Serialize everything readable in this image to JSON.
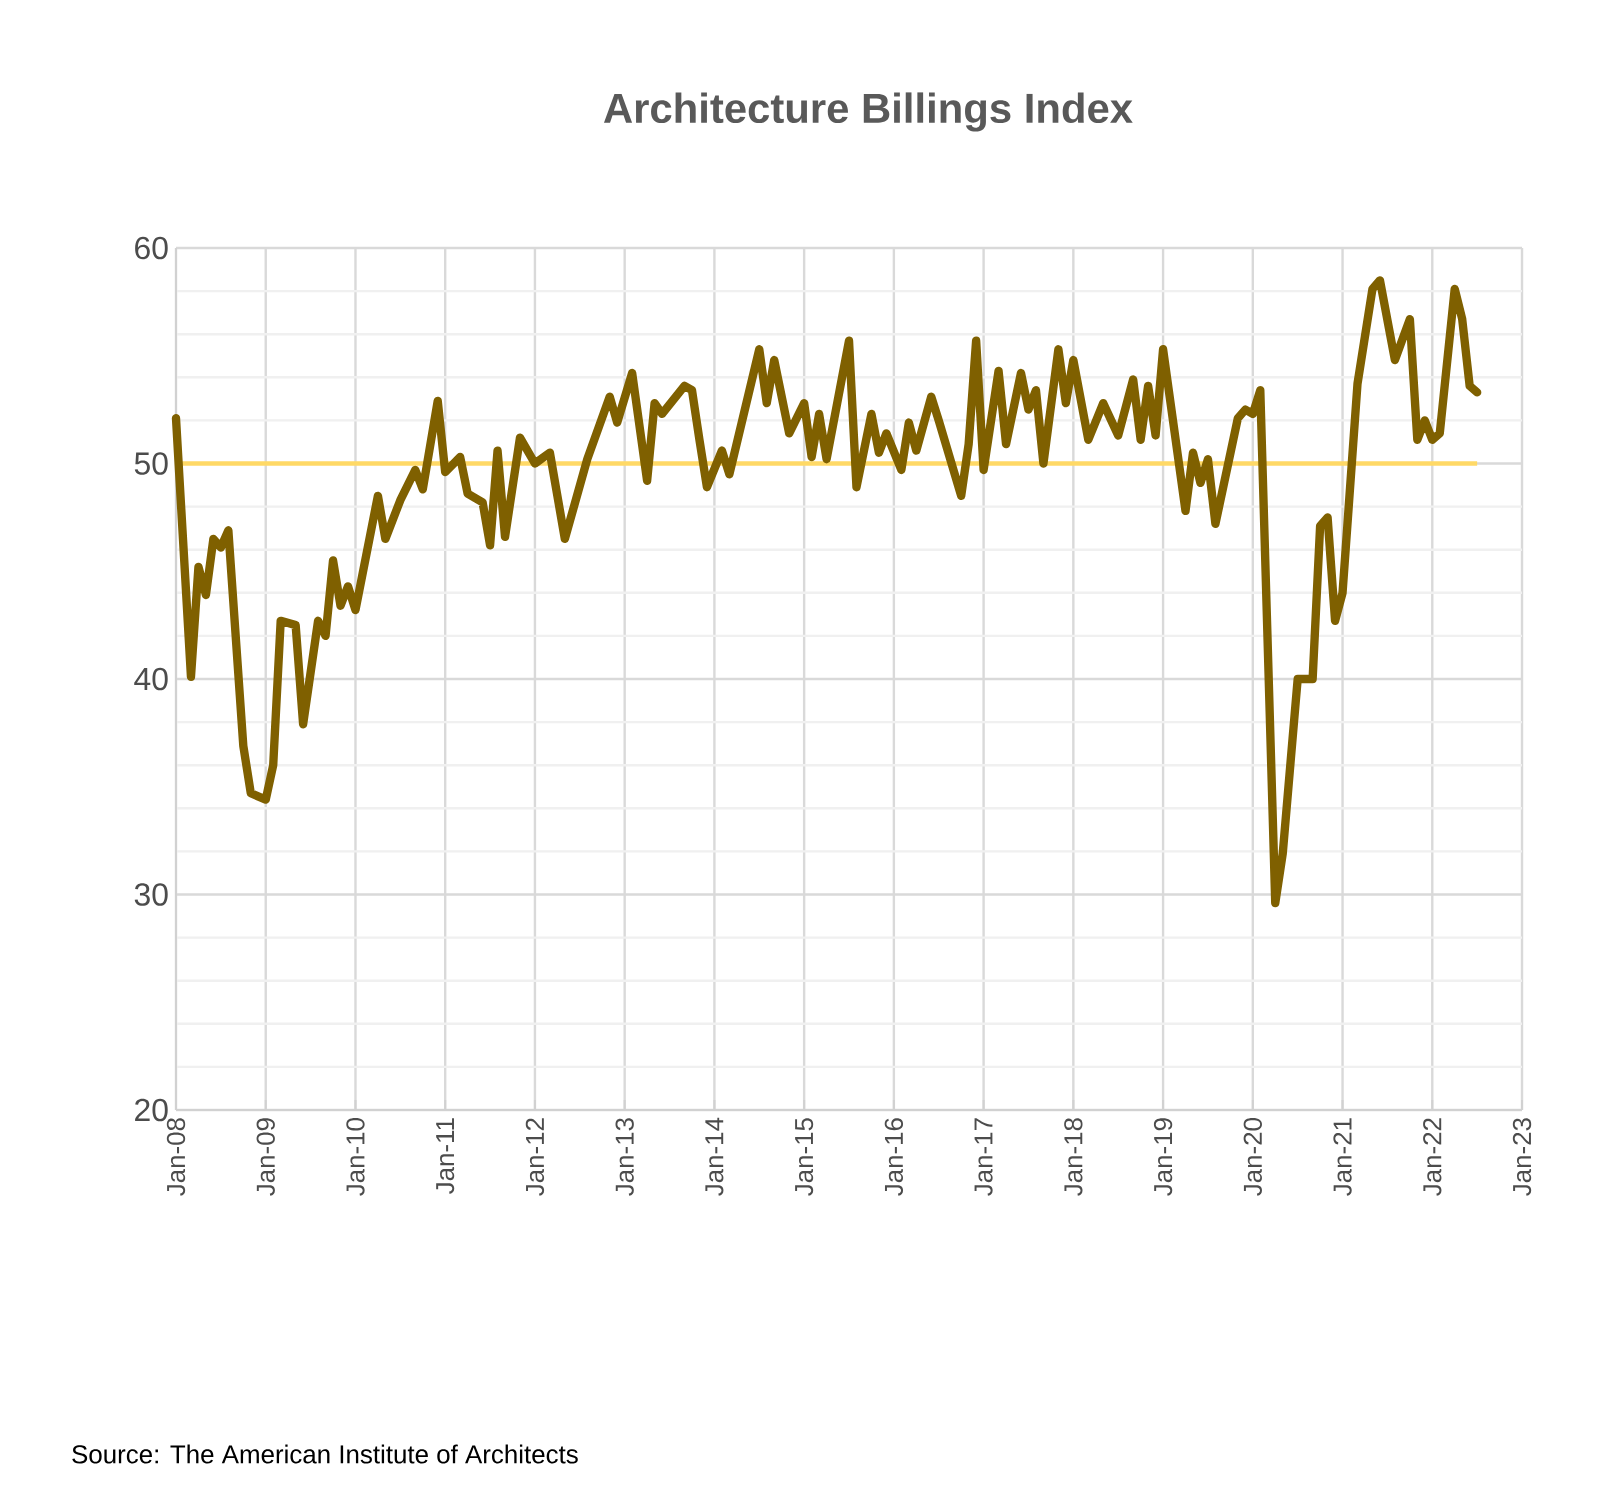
{
  "chart_data": {
    "type": "line",
    "title": "Architecture Billings Index",
    "annotations": [
      "Source: The American Institute of Architects"
    ],
    "x": [
      "2008-01",
      "2008-03",
      "2008-04",
      "2008-05",
      "2008-06",
      "2008-07",
      "2008-08",
      "2008-10",
      "2008-11",
      "2009-01",
      "2009-02",
      "2009-03",
      "2009-05",
      "2009-06",
      "2009-08",
      "2009-09",
      "2009-10",
      "2009-11",
      "2009-12",
      "2010-01",
      "2010-04",
      "2010-05",
      "2010-07",
      "2010-09",
      "2010-10",
      "2010-12",
      "2011-01",
      "2011-03",
      "2011-04",
      "2011-06",
      "2011-07",
      "2011-08",
      "2011-09",
      "2011-11",
      "2012-01",
      "2012-03",
      "2012-05",
      "2012-08",
      "2012-11",
      "2012-12",
      "2013-02",
      "2013-04",
      "2013-05",
      "2013-06",
      "2013-09",
      "2013-10",
      "2013-11",
      "2013-12",
      "2014-02",
      "2014-03",
      "2014-07",
      "2014-08",
      "2014-09",
      "2014-11",
      "2015-01",
      "2015-02",
      "2015-03",
      "2015-04",
      "2015-07",
      "2015-08",
      "2015-10",
      "2015-11",
      "2015-12",
      "2016-02",
      "2016-03",
      "2016-04",
      "2016-06",
      "2016-07",
      "2016-10",
      "2016-11",
      "2016-12",
      "2017-01",
      "2017-03",
      "2017-04",
      "2017-06",
      "2017-07",
      "2017-08",
      "2017-09",
      "2017-11",
      "2017-12",
      "2018-01",
      "2018-03",
      "2018-05",
      "2018-07",
      "2018-09",
      "2018-10",
      "2018-11",
      "2018-12",
      "2019-01",
      "2019-04",
      "2019-05",
      "2019-06",
      "2019-07",
      "2019-08",
      "2019-11",
      "2019-12",
      "2020-01",
      "2020-02",
      "2020-04",
      "2020-05",
      "2020-07",
      "2020-09",
      "2020-10",
      "2020-11",
      "2020-12",
      "2021-01",
      "2021-03",
      "2021-05",
      "2021-06",
      "2021-08",
      "2021-10",
      "2021-11",
      "2021-12",
      "2022-01",
      "2022-02",
      "2022-04",
      "2022-05",
      "2022-06",
      "2022-07"
    ],
    "series": [
      {
        "color": "#7f6000",
        "values": [
          52.1,
          40.1,
          45.2,
          43.9,
          46.5,
          46.1,
          46.9,
          36.9,
          34.7,
          34.4,
          36,
          42.7,
          42.5,
          37.9,
          42.7,
          42,
          45.5,
          43.4,
          44.3,
          43.2,
          48.5,
          46.5,
          48.3,
          49.7,
          48.8,
          52.9,
          49.6,
          50.3,
          48.6,
          48.2,
          46.2,
          50.6,
          46.6,
          51.2,
          50,
          50.5,
          46.5,
          50.2,
          53.1,
          51.9,
          54.2,
          49.2,
          52.8,
          52.3,
          53.6,
          53.4,
          51.1,
          48.9,
          50.6,
          49.5,
          55.3,
          52.8,
          54.8,
          51.4,
          52.8,
          50.3,
          52.3,
          50.2,
          55.7,
          48.9,
          52.3,
          50.5,
          51.4,
          49.7,
          51.9,
          50.6,
          53.1,
          52,
          48.5,
          50.9,
          55.7,
          49.7,
          54.3,
          50.9,
          54.2,
          52.5,
          53.4,
          50,
          55.3,
          52.8,
          54.8,
          51.1,
          52.8,
          51.3,
          53.9,
          51.1,
          53.6,
          51.3,
          55.3,
          47.8,
          50.5,
          49.1,
          50.2,
          47.2,
          52.1,
          52.5,
          52.3,
          53.4,
          29.6,
          31.9,
          40,
          40,
          47.1,
          47.5,
          42.7,
          44,
          53.7,
          58.1,
          58.5,
          54.8,
          56.7,
          51.1,
          52,
          51.1,
          51.4,
          58.1,
          56.7,
          53.6,
          53.3
        ]
      }
    ],
    "xlim": [
      "2008-01",
      "2023-01"
    ],
    "xticks": [
      {
        "value": "2008-01",
        "label": "Jan-08"
      },
      {
        "value": "2009-01",
        "label": "Jan-09"
      },
      {
        "value": "2010-01",
        "label": "Jan-10"
      },
      {
        "value": "2011-01",
        "label": "Jan-11"
      },
      {
        "value": "2012-01",
        "label": "Jan-12"
      },
      {
        "value": "2013-01",
        "label": "Jan-13"
      },
      {
        "value": "2014-01",
        "label": "Jan-14"
      },
      {
        "value": "2015-01",
        "label": "Jan-15"
      },
      {
        "value": "2016-01",
        "label": "Jan-16"
      },
      {
        "value": "2017-01",
        "label": "Jan-17"
      },
      {
        "value": "2018-01",
        "label": "Jan-18"
      },
      {
        "value": "2019-01",
        "label": "Jan-19"
      },
      {
        "value": "2020-01",
        "label": "Jan-20"
      },
      {
        "value": "2021-01",
        "label": "Jan-21"
      },
      {
        "value": "2022-01",
        "label": "Jan-22"
      },
      {
        "value": "2023-01",
        "label": "Jan-23"
      }
    ],
    "ylim": [
      20,
      60
    ],
    "yticks": [
      20,
      30,
      40,
      50,
      60
    ],
    "ref_lines": [
      {
        "axis": "y",
        "value": 50,
        "color": "#ffd966"
      }
    ],
    "grid": true,
    "marker": "none",
    "line_style": "solid"
  }
}
